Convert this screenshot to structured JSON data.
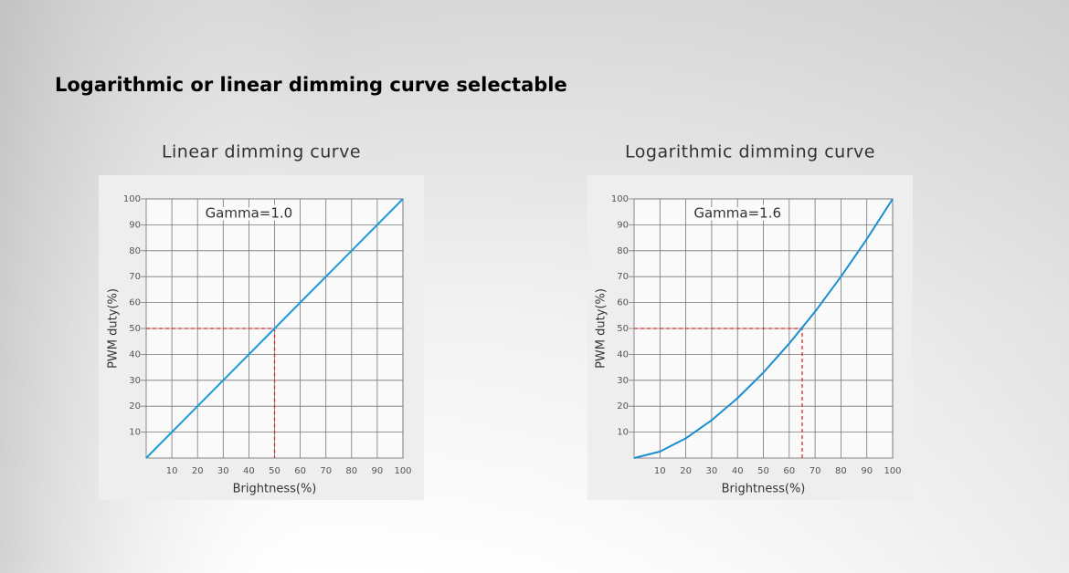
{
  "title": "Logarithmic or linear dimming curve selectable",
  "chart_data": [
    {
      "type": "line",
      "title": "Linear dimming curve",
      "annotation": "Gamma=1.0",
      "xlabel": "Brightness(%)",
      "ylabel": "PWM duty(%)",
      "x": [
        0,
        10,
        20,
        30,
        40,
        50,
        60,
        70,
        80,
        90,
        100
      ],
      "values": [
        0,
        10,
        20,
        30,
        40,
        50,
        60,
        70,
        80,
        90,
        100
      ],
      "color": "#1a9ad6",
      "guide": {
        "x": 50,
        "y": 50,
        "color": "#e0262e"
      },
      "xlim": [
        0,
        100
      ],
      "ylim": [
        0,
        100
      ],
      "xticks": [
        10,
        20,
        30,
        40,
        50,
        60,
        70,
        80,
        90,
        100
      ],
      "yticks": [
        10,
        20,
        30,
        40,
        50,
        60,
        70,
        80,
        90,
        100
      ],
      "grid": true
    },
    {
      "type": "line",
      "title": "Logarithmic dimming curve",
      "annotation": "Gamma=1.6",
      "xlabel": "Brightness(%)",
      "ylabel": "PWM duty(%)",
      "x": [
        0,
        10,
        20,
        30,
        40,
        50,
        60,
        70,
        80,
        90,
        100
      ],
      "values": [
        0,
        2.5,
        7.6,
        14.6,
        23.1,
        33.0,
        44.2,
        56.5,
        70.0,
        84.5,
        100
      ],
      "color": "#1a8fd0",
      "guide": {
        "x": 65,
        "y": 50,
        "color": "#e0262e"
      },
      "xlim": [
        0,
        100
      ],
      "ylim": [
        0,
        100
      ],
      "xticks": [
        10,
        20,
        30,
        40,
        50,
        60,
        70,
        80,
        90,
        100
      ],
      "yticks": [
        10,
        20,
        30,
        40,
        50,
        60,
        70,
        80,
        90,
        100
      ],
      "grid": true
    }
  ]
}
